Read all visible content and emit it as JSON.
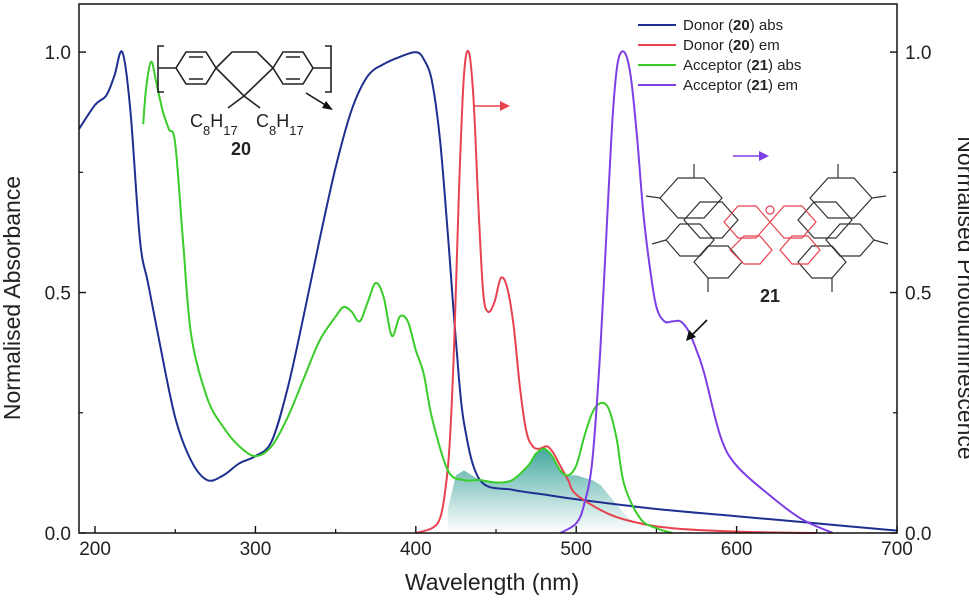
{
  "chart_data": {
    "type": "line",
    "xlabel": "Wavelength (nm)",
    "ylabel": "Normalised Absorbance",
    "y2label": "Normalised Photoluminescence",
    "xlim": [
      190,
      700
    ],
    "ylim": [
      0,
      1.1
    ],
    "y2lim": [
      0,
      1.1
    ],
    "x_ticks": [
      200,
      300,
      400,
      500,
      600,
      700
    ],
    "y_ticks": [
      0.0,
      0.5,
      1.0
    ],
    "y_tick_labels": [
      "0.0",
      "0.5",
      "1.0"
    ],
    "y2_tick_labels": [
      "0.0",
      "0.5",
      "1.0"
    ],
    "grid": false,
    "legend_position": "top-right",
    "series": [
      {
        "name": "Donor (20) abs",
        "legend_prefix": "Donor (",
        "legend_bold": "20",
        "legend_suffix": ") abs",
        "color": "#1f2f8f",
        "x": [
          190,
          200,
          207,
          212,
          217,
          222,
          228,
          233,
          240,
          250,
          260,
          270,
          280,
          290,
          300,
          310,
          320,
          330,
          340,
          350,
          360,
          370,
          380,
          390,
          400,
          405,
          410,
          415,
          420,
          425,
          430,
          440,
          460,
          480,
          500,
          550,
          600,
          650,
          700
        ],
        "y": [
          0.84,
          0.89,
          0.91,
          0.95,
          1.0,
          0.88,
          0.61,
          0.52,
          0.4,
          0.24,
          0.15,
          0.11,
          0.12,
          0.145,
          0.16,
          0.19,
          0.3,
          0.45,
          0.61,
          0.76,
          0.88,
          0.95,
          0.975,
          0.99,
          1.0,
          0.985,
          0.94,
          0.82,
          0.62,
          0.4,
          0.23,
          0.11,
          0.09,
          0.08,
          0.07,
          0.05,
          0.035,
          0.02,
          0.005
        ]
      },
      {
        "name": "Donor (20) em",
        "legend_prefix": "Donor (",
        "legend_bold": "20",
        "legend_suffix": ") em",
        "color": "#e8424f",
        "x": [
          400,
          410,
          415,
          418,
          421,
          424,
          427,
          430,
          433,
          436,
          439,
          442,
          445,
          449,
          453,
          457,
          461,
          465,
          469,
          473,
          477,
          482,
          486,
          490,
          495,
          500,
          520,
          540,
          560,
          600,
          650
        ],
        "y": [
          0.0,
          0.01,
          0.03,
          0.08,
          0.18,
          0.4,
          0.72,
          0.95,
          1.0,
          0.9,
          0.68,
          0.5,
          0.46,
          0.48,
          0.53,
          0.51,
          0.43,
          0.3,
          0.21,
          0.18,
          0.175,
          0.18,
          0.165,
          0.14,
          0.11,
          0.08,
          0.04,
          0.02,
          0.01,
          0.003,
          0.0
        ]
      },
      {
        "name": "Acceptor (21) abs",
        "legend_prefix": "Acceptor (",
        "legend_bold": "21",
        "legend_suffix": ") abs",
        "color": "#39cc2a",
        "x": [
          230,
          232,
          235,
          238,
          242,
          246,
          250,
          255,
          260,
          270,
          280,
          290,
          300,
          310,
          320,
          330,
          340,
          350,
          355,
          360,
          365,
          370,
          375,
          380,
          385,
          390,
          395,
          400,
          405,
          410,
          420,
          430,
          440,
          450,
          460,
          470,
          475,
          480,
          485,
          490,
          495,
          500,
          505,
          510,
          515,
          520,
          525,
          530,
          540,
          550,
          560
        ],
        "y": [
          0.85,
          0.93,
          0.98,
          0.94,
          0.88,
          0.84,
          0.81,
          0.6,
          0.41,
          0.28,
          0.22,
          0.18,
          0.16,
          0.18,
          0.24,
          0.32,
          0.4,
          0.45,
          0.47,
          0.46,
          0.44,
          0.48,
          0.52,
          0.49,
          0.41,
          0.45,
          0.44,
          0.38,
          0.33,
          0.24,
          0.13,
          0.11,
          0.11,
          0.105,
          0.11,
          0.14,
          0.165,
          0.175,
          0.16,
          0.13,
          0.12,
          0.14,
          0.2,
          0.25,
          0.27,
          0.26,
          0.2,
          0.1,
          0.03,
          0.01,
          0.0
        ]
      },
      {
        "name": "Acceptor (21) em",
        "legend_prefix": "Acceptor (",
        "legend_bold": "21",
        "legend_suffix": ") em",
        "color": "#7e3ee6",
        "x": [
          490,
          500,
          505,
          510,
          515,
          520,
          523,
          526,
          530,
          534,
          538,
          542,
          546,
          550,
          555,
          560,
          565,
          570,
          575,
          580,
          590,
          600,
          620,
          640,
          660
        ],
        "y": [
          0.0,
          0.02,
          0.06,
          0.15,
          0.38,
          0.7,
          0.88,
          0.98,
          1.0,
          0.95,
          0.82,
          0.66,
          0.55,
          0.47,
          0.44,
          0.44,
          0.44,
          0.42,
          0.38,
          0.33,
          0.2,
          0.14,
          0.08,
          0.03,
          0.0
        ]
      }
    ],
    "overlap_shading": {
      "color": "#3aa39a",
      "x": [
        420,
        425,
        430,
        440,
        450,
        460,
        470,
        475,
        480,
        485,
        490,
        495,
        500,
        505,
        510,
        515,
        520,
        525,
        530,
        540,
        550
      ],
      "y": [
        0.05,
        0.12,
        0.13,
        0.11,
        0.105,
        0.11,
        0.14,
        0.165,
        0.175,
        0.16,
        0.13,
        0.12,
        0.12,
        0.115,
        0.11,
        0.1,
        0.08,
        0.06,
        0.04,
        0.01,
        0.0
      ]
    },
    "annotations": {
      "polymer_label": "20",
      "substituent_left_main": "C",
      "substituent_left_sub1": "8",
      "substituent_left_mid": "H",
      "substituent_left_sub2": "17",
      "substituent_right_main": "C",
      "substituent_right_sub1": "8",
      "substituent_right_mid": "H",
      "substituent_right_sub2": "17",
      "molecule_label": "21",
      "arrow_colors": [
        "#111111",
        "#e8424f",
        "#7e3ee6",
        "#111111"
      ]
    }
  }
}
